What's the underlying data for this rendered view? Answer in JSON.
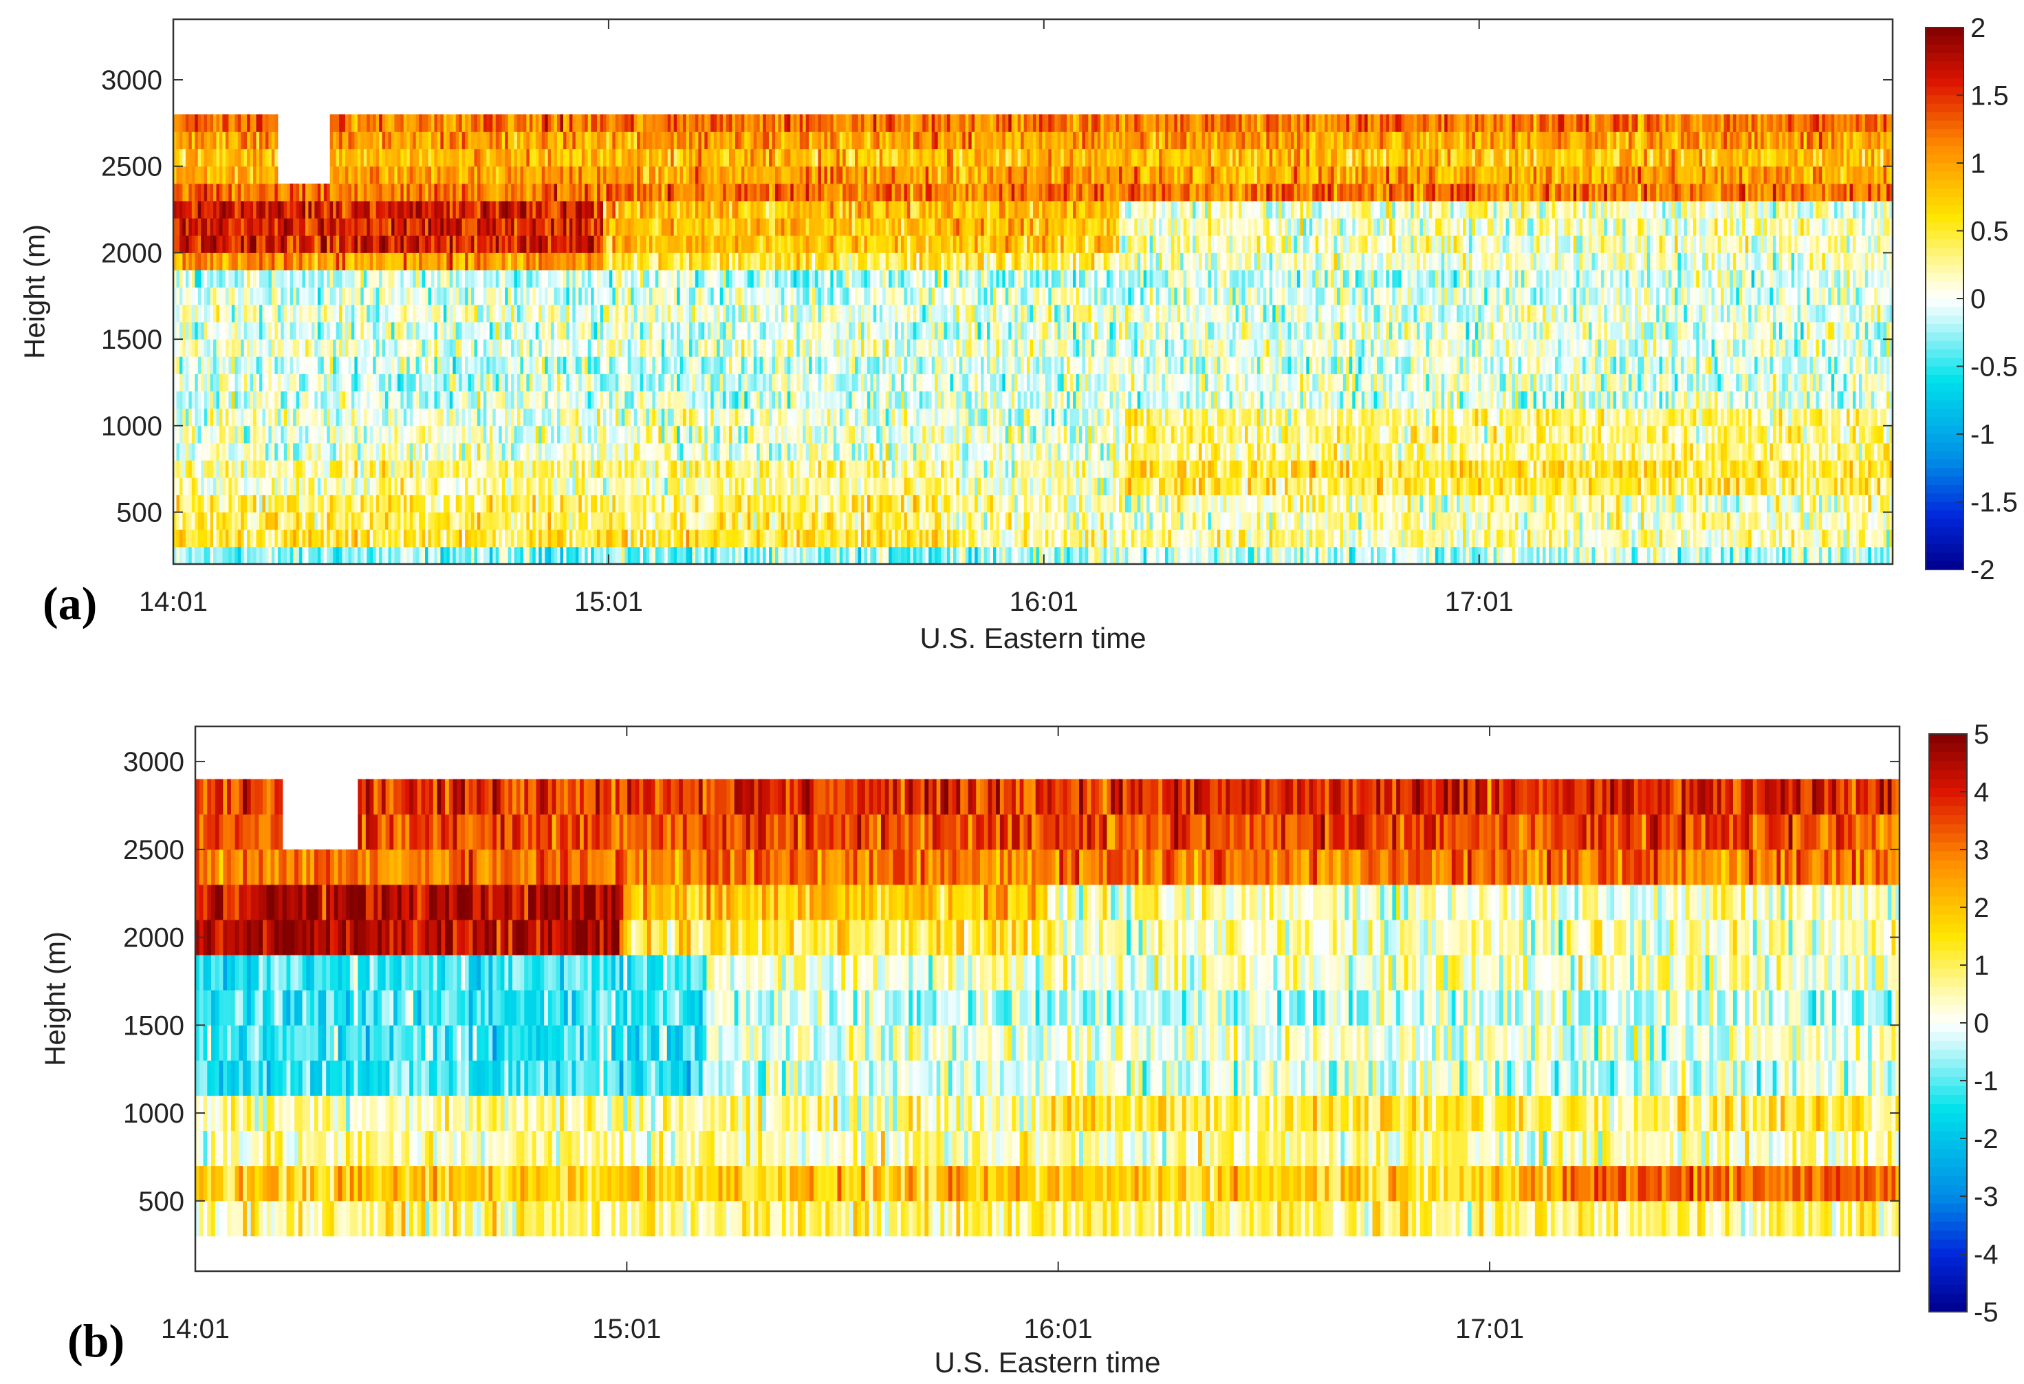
{
  "chart_data": [
    {
      "type": "heatmap",
      "panel_label": "(a)",
      "xlabel": "U.S. Eastern time",
      "ylabel": "Height (m)",
      "x_tick_labels": [
        "14:01",
        "15:01",
        "16:01",
        "17:01"
      ],
      "y_tick_labels": [
        "500",
        "1000",
        "1500",
        "2000",
        "2500",
        "3000"
      ],
      "ylim": [
        200,
        3350
      ],
      "colorbar": {
        "min": -2,
        "max": 2,
        "tick_labels": [
          "2",
          "1.5",
          "1",
          "0.5",
          "0",
          "-0.5",
          "-1",
          "-1.5",
          "-2"
        ]
      },
      "row_heights_m": [
        250,
        350,
        450,
        550,
        650,
        750,
        850,
        950,
        1050,
        1150,
        1250,
        1350,
        1450,
        1550,
        1650,
        1750,
        1850,
        1950,
        2050,
        2150,
        2250,
        2350,
        2450,
        2550,
        2650,
        2750
      ],
      "row_mean_values": [
        -0.3,
        0.5,
        0.4,
        0.4,
        0.2,
        0.3,
        0.05,
        0.05,
        0.05,
        -0.05,
        -0.05,
        -0.1,
        0.05,
        -0.05,
        0.05,
        -0.05,
        -0.1,
        0.5,
        0.8,
        0.8,
        0.8,
        1.2,
        1.0,
        0.8,
        1.0,
        1.2
      ]
    },
    {
      "type": "heatmap",
      "panel_label": "(b)",
      "xlabel": "U.S. Eastern time",
      "ylabel": "Height (m)",
      "x_tick_labels": [
        "14:01",
        "15:01",
        "16:01",
        "17:01"
      ],
      "y_tick_labels": [
        "500",
        "1000",
        "1500",
        "2000",
        "2500",
        "3000"
      ],
      "ylim": [
        100,
        3200
      ],
      "colorbar": {
        "min": -5,
        "max": 5,
        "tick_labels": [
          "5",
          "4",
          "3",
          "2",
          "1",
          "0",
          "-1",
          "-2",
          "-3",
          "-4",
          "-5"
        ]
      },
      "row_heights_m": [
        400,
        600,
        800,
        1000,
        1200,
        1400,
        1600,
        1800,
        2000,
        2200,
        2400,
        2600,
        2800
      ],
      "row_mean_values": [
        0.8,
        1.8,
        0.5,
        0.6,
        -0.2,
        0.1,
        -0.3,
        0.3,
        1.2,
        2.0,
        3.0,
        3.5,
        3.8
      ]
    }
  ]
}
